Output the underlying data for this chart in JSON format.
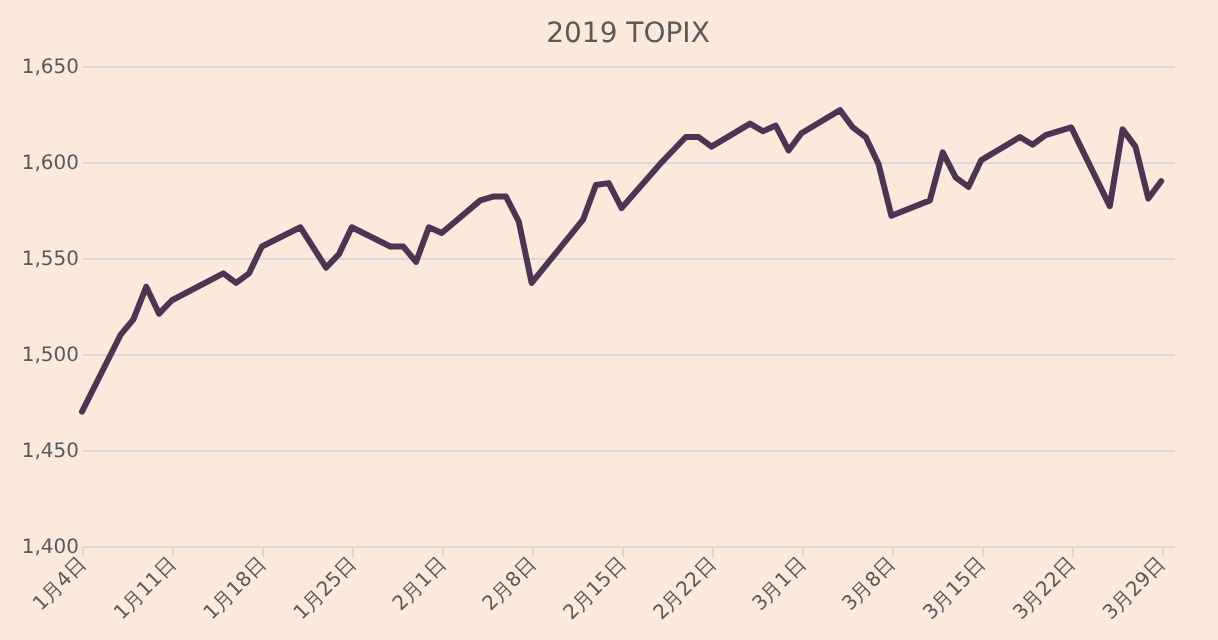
{
  "chart_data": {
    "type": "line",
    "title": "2019 TOPIX",
    "x": [
      "2019-01-04",
      "2019-01-07",
      "2019-01-08",
      "2019-01-09",
      "2019-01-10",
      "2019-01-11",
      "2019-01-15",
      "2019-01-16",
      "2019-01-17",
      "2019-01-18",
      "2019-01-21",
      "2019-01-23",
      "2019-01-24",
      "2019-01-25",
      "2019-01-28",
      "2019-01-29",
      "2019-01-30",
      "2019-01-31",
      "2019-02-01",
      "2019-02-04",
      "2019-02-05",
      "2019-02-06",
      "2019-02-07",
      "2019-02-08",
      "2019-02-12",
      "2019-02-13",
      "2019-02-14",
      "2019-02-15",
      "2019-02-18",
      "2019-02-19",
      "2019-02-20",
      "2019-02-21",
      "2019-02-22",
      "2019-02-25",
      "2019-02-26",
      "2019-02-27",
      "2019-02-28",
      "2019-03-01",
      "2019-03-04",
      "2019-03-05",
      "2019-03-06",
      "2019-03-07",
      "2019-03-08",
      "2019-03-11",
      "2019-03-12",
      "2019-03-13",
      "2019-03-14",
      "2019-03-15",
      "2019-03-18",
      "2019-03-19",
      "2019-03-20",
      "2019-03-22",
      "2019-03-25",
      "2019-03-26",
      "2019-03-27",
      "2019-03-28",
      "2019-03-29"
    ],
    "series": [
      {
        "color": "#4b3553",
        "values": [
          1470,
          1510,
          1518,
          1535,
          1521,
          1528,
          1542,
          1537,
          1542,
          1556,
          1566,
          1545,
          1552,
          1566,
          1556,
          1556,
          1548,
          1566,
          1563,
          1580,
          1582,
          1582,
          1569,
          1537,
          1570,
          1588,
          1589,
          1576,
          1599,
          1606,
          1613,
          1613,
          1608,
          1620,
          1616,
          1619,
          1606,
          1615,
          1627,
          1618,
          1613,
          1599,
          1572,
          1580,
          1605,
          1592,
          1587,
          1601,
          1613,
          1609,
          1614,
          1618,
          1577,
          1617,
          1608,
          1581,
          1590
        ]
      }
    ],
    "xlim": [
      "2019-01-04",
      "2019-03-30"
    ],
    "xticks": [
      {
        "value": "2019-01-04",
        "label": "1月4日"
      },
      {
        "value": "2019-01-11",
        "label": "1月11日"
      },
      {
        "value": "2019-01-18",
        "label": "1月18日"
      },
      {
        "value": "2019-01-25",
        "label": "1月25日"
      },
      {
        "value": "2019-02-01",
        "label": "2月1日"
      },
      {
        "value": "2019-02-08",
        "label": "2月8日"
      },
      {
        "value": "2019-02-15",
        "label": "2月15日"
      },
      {
        "value": "2019-02-22",
        "label": "2月22日"
      },
      {
        "value": "2019-03-01",
        "label": "3月1日"
      },
      {
        "value": "2019-03-08",
        "label": "3月8日"
      },
      {
        "value": "2019-03-15",
        "label": "3月15日"
      },
      {
        "value": "2019-03-22",
        "label": "3月22日"
      },
      {
        "value": "2019-03-29",
        "label": "3月29日"
      }
    ],
    "ylim": [
      1400,
      1650
    ],
    "yticks": [
      {
        "value": 1400,
        "label": "1,400"
      },
      {
        "value": 1450,
        "label": "1,450"
      },
      {
        "value": 1500,
        "label": "1,500"
      },
      {
        "value": 1550,
        "label": "1,550"
      },
      {
        "value": 1600,
        "label": "1,600"
      },
      {
        "value": 1650,
        "label": "1,650"
      }
    ],
    "grid": "y",
    "marker": "none",
    "line_style": "solid"
  }
}
